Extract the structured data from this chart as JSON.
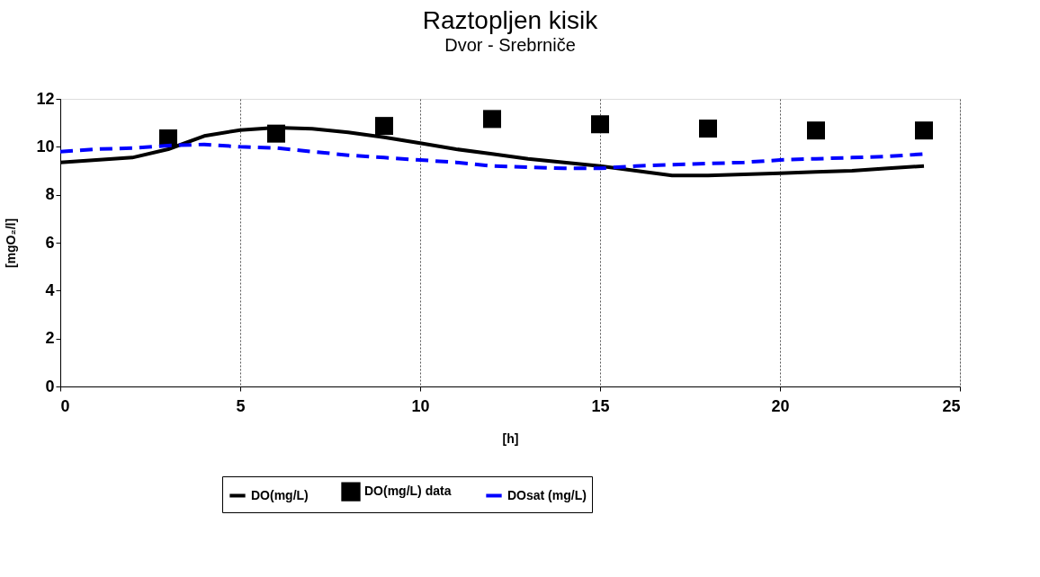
{
  "chart_data": {
    "type": "line",
    "title": "Raztopljen kisik",
    "subtitle": "Dvor - Srebrniče",
    "xlabel": "[h]",
    "ylabel": "[mgO₂/l]",
    "xlim": [
      0,
      25
    ],
    "xticks": [
      0,
      5,
      10,
      15,
      20,
      25
    ],
    "ylim": [
      0,
      12
    ],
    "yticks": [
      0,
      2,
      4,
      6,
      8,
      10,
      12
    ],
    "grid": "x",
    "legend": "bottom",
    "series": [
      {
        "name": "DO(mg/L)",
        "color": "#000000",
        "line_style": "solid",
        "x": [
          0,
          1,
          2,
          3,
          4,
          5,
          6,
          7,
          8,
          9,
          10,
          11,
          12,
          13,
          14,
          15,
          16,
          17,
          18,
          19,
          20,
          21,
          22,
          23,
          24
        ],
        "values": [
          9.35,
          9.45,
          9.55,
          9.9,
          10.45,
          10.7,
          10.8,
          10.75,
          10.6,
          10.4,
          10.15,
          9.9,
          9.7,
          9.5,
          9.35,
          9.2,
          9.0,
          8.8,
          8.8,
          8.85,
          8.9,
          8.95,
          9.0,
          9.1,
          9.2
        ]
      },
      {
        "name": "DO(mg/L) data",
        "type": "scatter",
        "marker": "square",
        "color": "#000000",
        "x": [
          3,
          6,
          9,
          12,
          15,
          18,
          21,
          24
        ],
        "values": [
          10.35,
          10.55,
          10.87,
          11.16,
          10.94,
          10.76,
          10.68,
          10.68
        ]
      },
      {
        "name": "DOsat (mg/L)",
        "color": "#0000ff",
        "line_style": "dashed",
        "x": [
          0,
          1,
          2,
          3,
          4,
          5,
          6,
          7,
          8,
          9,
          10,
          11,
          12,
          13,
          14,
          15,
          16,
          17,
          18,
          19,
          20,
          21,
          22,
          23,
          24
        ],
        "values": [
          9.8,
          9.9,
          9.95,
          10.05,
          10.1,
          10.0,
          9.95,
          9.8,
          9.65,
          9.55,
          9.45,
          9.35,
          9.2,
          9.15,
          9.1,
          9.1,
          9.2,
          9.25,
          9.3,
          9.35,
          9.45,
          9.5,
          9.55,
          9.6,
          9.7
        ]
      }
    ]
  }
}
